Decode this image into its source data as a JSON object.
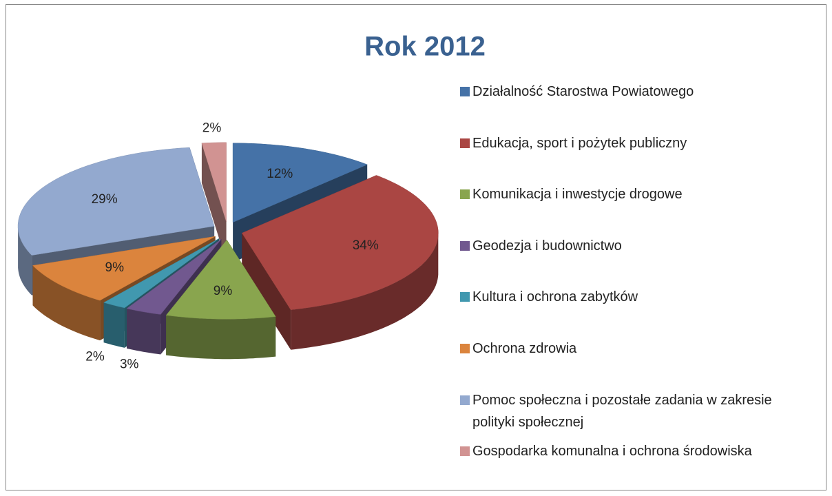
{
  "chart_data": {
    "type": "pie3d",
    "title": "Rok 2012",
    "categories": [
      "Działalność Starostwa Powiatowego",
      "Edukacja, sport i pożytek publiczny",
      "Komunikacja i inwestycje drogowe",
      "Geodezja i budownictwo",
      "Kultura i ochrona zabytków",
      "Ochrona zdrowia",
      "Pomoc społeczna i pozostałe zadania w zakresie polityki społecznej",
      "Gospodarka komunalna i ochrona środowiska"
    ],
    "values": [
      12,
      34,
      9,
      3,
      2,
      9,
      29,
      2
    ],
    "value_labels": [
      "12%",
      "34%",
      "9%",
      "3%",
      "2%",
      "9%",
      "29%",
      "2%"
    ],
    "colors": [
      "#4572a7",
      "#aa4643",
      "#89a54e",
      "#71588f",
      "#4198af",
      "#db843d",
      "#93a9cf",
      "#d19392"
    ],
    "legend": "right"
  }
}
